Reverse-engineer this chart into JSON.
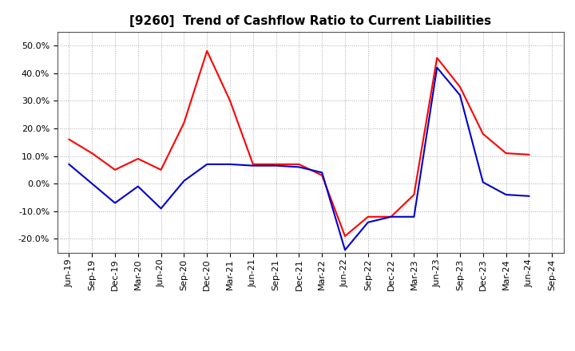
{
  "title": "[9260]  Trend of Cashflow Ratio to Current Liabilities",
  "x_labels": [
    "Jun-19",
    "Sep-19",
    "Dec-19",
    "Mar-20",
    "Jun-20",
    "Sep-20",
    "Dec-20",
    "Mar-21",
    "Jun-21",
    "Sep-21",
    "Dec-21",
    "Mar-22",
    "Jun-22",
    "Sep-22",
    "Dec-22",
    "Mar-23",
    "Jun-23",
    "Sep-23",
    "Dec-23",
    "Mar-24",
    "Jun-24",
    "Sep-24"
  ],
  "operating_cf": [
    16.0,
    11.0,
    5.0,
    9.0,
    5.0,
    22.0,
    48.0,
    30.0,
    7.0,
    7.0,
    7.0,
    3.0,
    -19.0,
    -12.0,
    -12.0,
    -4.0,
    45.5,
    35.0,
    18.0,
    11.0,
    10.5,
    null
  ],
  "free_cf": [
    7.0,
    0.0,
    -7.0,
    -1.0,
    -9.0,
    1.0,
    7.0,
    7.0,
    6.5,
    6.5,
    6.0,
    4.0,
    -24.0,
    -14.0,
    -12.0,
    -12.0,
    42.0,
    32.0,
    0.5,
    -4.0,
    -4.5,
    null
  ],
  "operating_color": "#ff0000",
  "free_color": "#0000cc",
  "ylim": [
    -25,
    55
  ],
  "yticks": [
    -20.0,
    -10.0,
    0.0,
    10.0,
    20.0,
    30.0,
    40.0,
    50.0
  ],
  "background_color": "#ffffff",
  "plot_bg_color": "#ffffff",
  "grid_color": "#aaaaaa",
  "title_fontsize": 11,
  "legend_fontsize": 9,
  "tick_fontsize": 8,
  "linewidth": 1.5
}
